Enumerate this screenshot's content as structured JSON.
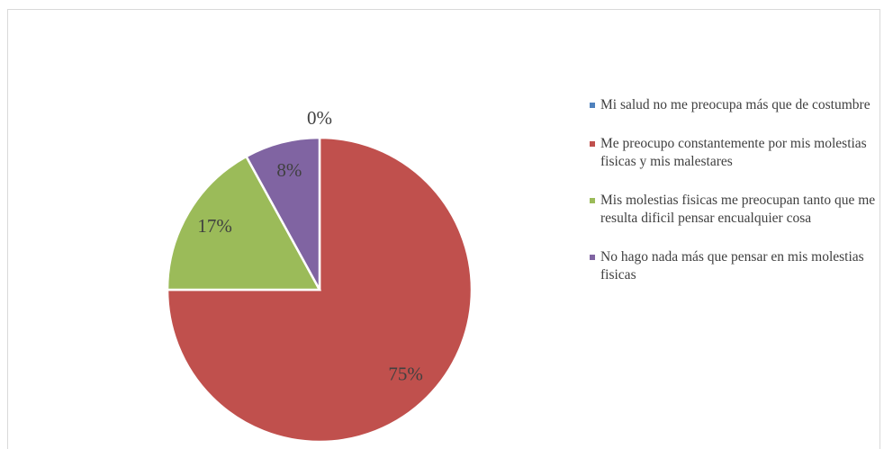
{
  "chart_data": {
    "type": "pie",
    "categories": [
      "Mi salud no me preocupa más que de costumbre",
      "Me preocupo constantemente por mis molestias fisicas y mis malestares",
      "Mis molestias fisicas me preocupan tanto que me resulta dificil pensar encualquier cosa",
      "No hago nada más que pensar en mis molestias fisicas"
    ],
    "values": [
      0,
      75,
      17,
      8
    ],
    "value_labels": [
      "0%",
      "75%",
      "17%",
      "8%"
    ],
    "colors": [
      "#4f81bd",
      "#c0504d",
      "#9bbb59",
      "#8064a2"
    ],
    "legend": "right"
  }
}
